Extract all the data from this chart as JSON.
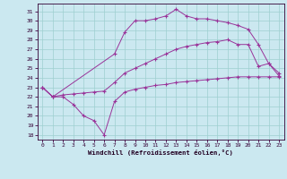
{
  "bg_color": "#cbe8f0",
  "grid_color": "#9ecfcf",
  "line_color": "#993399",
  "xlabel": "Windchill (Refroidissement éolien,°C)",
  "ylim": [
    17.5,
    31.8
  ],
  "xlim": [
    -0.5,
    23.5
  ],
  "yticks": [
    18,
    19,
    20,
    21,
    22,
    23,
    24,
    25,
    26,
    27,
    28,
    29,
    30,
    31
  ],
  "xticks": [
    0,
    1,
    2,
    3,
    4,
    5,
    6,
    7,
    8,
    9,
    10,
    11,
    12,
    13,
    14,
    15,
    16,
    17,
    18,
    19,
    20,
    21,
    22,
    23
  ],
  "line1_x": [
    0,
    1,
    2,
    3,
    4,
    5,
    6,
    7,
    8,
    9,
    10,
    11,
    12,
    13,
    14,
    15,
    16,
    17,
    18,
    19,
    20,
    21,
    22,
    23
  ],
  "line1_y": [
    23.0,
    22.0,
    22.0,
    21.2,
    20.0,
    19.5,
    18.0,
    21.5,
    22.5,
    22.8,
    23.0,
    23.2,
    23.3,
    23.5,
    23.6,
    23.7,
    23.8,
    23.9,
    24.0,
    24.1,
    24.1,
    24.1,
    24.1,
    24.1
  ],
  "line2_x": [
    0,
    1,
    2,
    3,
    4,
    5,
    6,
    7,
    8,
    9,
    10,
    11,
    12,
    13,
    14,
    15,
    16,
    17,
    18,
    19,
    20,
    21,
    22,
    23
  ],
  "line2_y": [
    23.0,
    22.0,
    22.2,
    22.3,
    22.4,
    22.5,
    22.6,
    23.5,
    24.5,
    25.0,
    25.5,
    26.0,
    26.5,
    27.0,
    27.3,
    27.5,
    27.7,
    27.8,
    28.0,
    27.5,
    27.5,
    25.2,
    25.5,
    24.2
  ],
  "line3_x": [
    0,
    1,
    7,
    8,
    9,
    10,
    11,
    12,
    13,
    14,
    15,
    16,
    17,
    18,
    19,
    20,
    21,
    22,
    23
  ],
  "line3_y": [
    23.0,
    22.0,
    26.5,
    28.8,
    30.0,
    30.0,
    30.2,
    30.5,
    31.2,
    30.5,
    30.2,
    30.2,
    30.0,
    29.8,
    29.5,
    29.1,
    27.5,
    25.5,
    24.5
  ]
}
